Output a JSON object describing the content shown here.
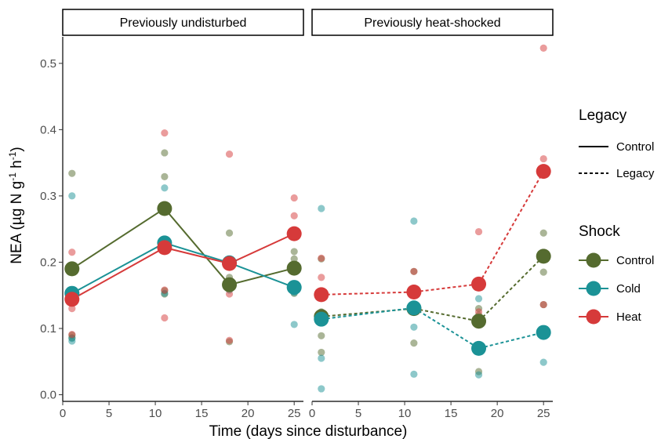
{
  "chart_data": {
    "type": "scatter",
    "xlabel": "Time (days since disturbance)",
    "ylabel_parts": {
      "main": "NEA (µg N g",
      "sup1": "-1",
      "mid": " h",
      "sup2": "-1",
      "end": ")"
    },
    "xlim": [
      0,
      26
    ],
    "ylim": [
      -0.01,
      0.54
    ],
    "xticks": [
      0,
      5,
      10,
      15,
      20,
      25
    ],
    "xtick_labels": [
      "0",
      "5",
      "10",
      "15",
      "20",
      "25"
    ],
    "yticks": [
      0.0,
      0.1,
      0.2,
      0.3,
      0.4,
      0.5
    ],
    "ytick_labels": [
      "0.0",
      "0.1",
      "0.2",
      "0.3",
      "0.4",
      "0.5"
    ],
    "grid": false,
    "colors": {
      "Control": "#556B2F",
      "Cold": "#1B9296",
      "Heat": "#D63A3A"
    },
    "legend": {
      "placement": "right",
      "legacy_title": "Legacy",
      "legacy_items": [
        {
          "label": "Control",
          "linetype": "solid"
        },
        {
          "label": "Legacy",
          "linetype": "dashed"
        }
      ],
      "shock_title": "Shock",
      "shock_items": [
        {
          "label": "Control",
          "color": "#556B2F"
        },
        {
          "label": "Cold",
          "color": "#1B9296"
        },
        {
          "label": "Heat",
          "color": "#D63A3A"
        }
      ]
    },
    "panels": [
      {
        "title": "Previously undisturbed",
        "linetype": "solid",
        "series": [
          {
            "name": "Control",
            "x": [
              1,
              11,
              18,
              25
            ],
            "y": [
              0.19,
              0.281,
              0.166,
              0.191
            ]
          },
          {
            "name": "Cold",
            "x": [
              1,
              11,
              18,
              25
            ],
            "y": [
              0.153,
              0.229,
              0.199,
              0.162
            ]
          },
          {
            "name": "Heat",
            "x": [
              1,
              11,
              18,
              25
            ],
            "y": [
              0.144,
              0.222,
              0.198,
              0.243
            ]
          }
        ],
        "replicates": [
          {
            "name": "Control",
            "x": [
              1,
              1,
              1,
              11,
              11,
              11,
              11,
              18,
              18,
              18,
              25,
              25,
              25
            ],
            "y": [
              0.334,
              0.09,
              0.086,
              0.365,
              0.329,
              0.157,
              0.152,
              0.244,
              0.177,
              0.08,
              0.216,
              0.205,
              0.153
            ]
          },
          {
            "name": "Cold",
            "x": [
              1,
              1,
              1,
              11,
              11,
              18,
              18,
              25,
              25
            ],
            "y": [
              0.3,
              0.085,
              0.081,
              0.312,
              0.153,
              0.2,
              0.158,
              0.154,
              0.106
            ]
          },
          {
            "name": "Heat",
            "x": [
              1,
              1,
              1,
              11,
              11,
              11,
              18,
              18,
              18,
              25,
              25,
              25
            ],
            "y": [
              0.215,
              0.13,
              0.091,
              0.395,
              0.158,
              0.116,
              0.363,
              0.152,
              0.082,
              0.297,
              0.27,
              0.19
            ]
          }
        ]
      },
      {
        "title": "Previously heat-shocked",
        "linetype": "dashed",
        "series": [
          {
            "name": "Control",
            "x": [
              1,
              11,
              18,
              25
            ],
            "y": [
              0.118,
              0.13,
              0.111,
              0.209
            ]
          },
          {
            "name": "Cold",
            "x": [
              1,
              11,
              18,
              25
            ],
            "y": [
              0.114,
              0.131,
              0.07,
              0.094
            ]
          },
          {
            "name": "Heat",
            "x": [
              1,
              11,
              18,
              25
            ],
            "y": [
              0.151,
              0.155,
              0.167,
              0.337
            ]
          }
        ],
        "replicates": [
          {
            "name": "Control",
            "x": [
              1,
              1,
              1,
              1,
              11,
              11,
              11,
              18,
              18,
              18,
              25,
              25,
              25
            ],
            "y": [
              0.205,
              0.125,
              0.089,
              0.064,
              0.186,
              0.13,
              0.078,
              0.13,
              0.12,
              0.035,
              0.244,
              0.185,
              0.136
            ]
          },
          {
            "name": "Cold",
            "x": [
              1,
              1,
              1,
              11,
              11,
              11,
              18,
              18,
              25
            ],
            "y": [
              0.281,
              0.055,
              0.009,
              0.262,
              0.102,
              0.031,
              0.145,
              0.03,
              0.049
            ]
          },
          {
            "name": "Heat",
            "x": [
              1,
              1,
              1,
              11,
              11,
              18,
              18,
              25,
              25,
              25
            ],
            "y": [
              0.206,
              0.177,
              0.116,
              0.186,
              0.154,
              0.246,
              0.125,
              0.523,
              0.356,
              0.136
            ]
          }
        ]
      }
    ]
  }
}
